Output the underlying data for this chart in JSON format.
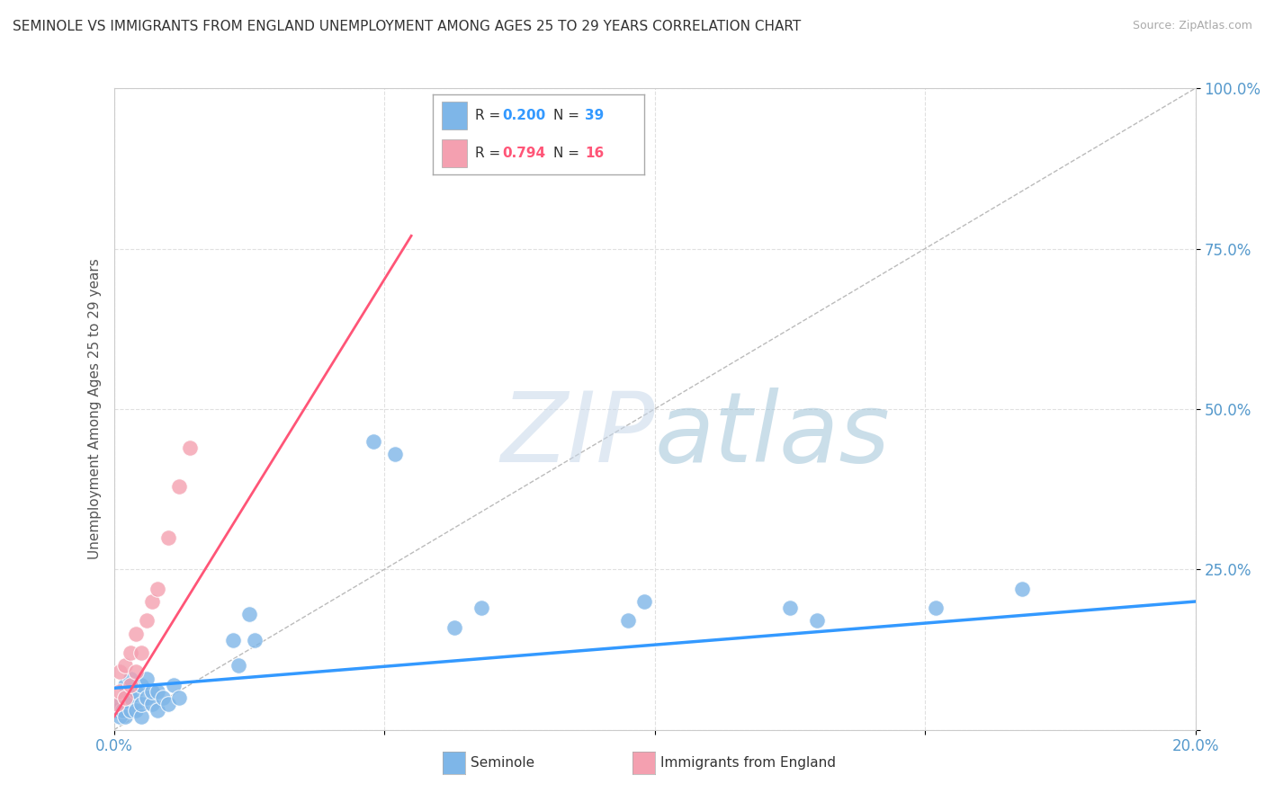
{
  "title": "SEMINOLE VS IMMIGRANTS FROM ENGLAND UNEMPLOYMENT AMONG AGES 25 TO 29 YEARS CORRELATION CHART",
  "source": "Source: ZipAtlas.com",
  "ylabel": "Unemployment Among Ages 25 to 29 years",
  "xlim": [
    0.0,
    0.2
  ],
  "ylim": [
    0.0,
    1.0
  ],
  "xticks": [
    0.0,
    0.05,
    0.1,
    0.15,
    0.2
  ],
  "yticks": [
    0.0,
    0.25,
    0.5,
    0.75,
    1.0
  ],
  "seminole_color": "#7eb6e8",
  "england_color": "#f4a0b0",
  "seminole_R": 0.2,
  "seminole_N": 39,
  "england_R": 0.794,
  "england_N": 16,
  "background_color": "#ffffff",
  "grid_color": "#e0e0e0",
  "watermark_color": "#c5d8ea",
  "seminole_x": [
    0.0005,
    0.001,
    0.001,
    0.0015,
    0.002,
    0.002,
    0.002,
    0.003,
    0.003,
    0.003,
    0.004,
    0.004,
    0.005,
    0.005,
    0.005,
    0.006,
    0.006,
    0.007,
    0.007,
    0.008,
    0.008,
    0.009,
    0.01,
    0.011,
    0.012,
    0.022,
    0.023,
    0.025,
    0.026,
    0.048,
    0.052,
    0.063,
    0.068,
    0.095,
    0.098,
    0.125,
    0.13,
    0.152,
    0.168
  ],
  "seminole_y": [
    0.03,
    0.02,
    0.04,
    0.03,
    0.02,
    0.05,
    0.07,
    0.03,
    0.05,
    0.08,
    0.03,
    0.06,
    0.02,
    0.04,
    0.07,
    0.05,
    0.08,
    0.04,
    0.06,
    0.03,
    0.06,
    0.05,
    0.04,
    0.07,
    0.05,
    0.14,
    0.1,
    0.18,
    0.14,
    0.45,
    0.43,
    0.16,
    0.19,
    0.17,
    0.2,
    0.19,
    0.17,
    0.19,
    0.22
  ],
  "england_x": [
    0.0005,
    0.001,
    0.001,
    0.002,
    0.002,
    0.003,
    0.003,
    0.004,
    0.004,
    0.005,
    0.006,
    0.007,
    0.008,
    0.01,
    0.012,
    0.014
  ],
  "england_y": [
    0.04,
    0.06,
    0.09,
    0.05,
    0.1,
    0.07,
    0.12,
    0.09,
    0.15,
    0.12,
    0.17,
    0.2,
    0.22,
    0.3,
    0.38,
    0.44
  ],
  "seminole_line_color": "#3399ff",
  "england_line_color": "#ff5577",
  "england_line_x0": 0.0,
  "england_line_x1": 0.055,
  "england_line_y0": 0.02,
  "england_line_y1": 0.77,
  "seminole_line_x0": 0.0,
  "seminole_line_x1": 0.2,
  "seminole_line_y0": 0.065,
  "seminole_line_y1": 0.2,
  "title_fontsize": 11,
  "axis_label_fontsize": 11,
  "tick_fontsize": 12,
  "legend_R_color_blue": "#3399ff",
  "legend_N_color_blue": "#3399ff",
  "legend_R_color_pink": "#ff5577",
  "legend_N_color_pink": "#ff5577"
}
